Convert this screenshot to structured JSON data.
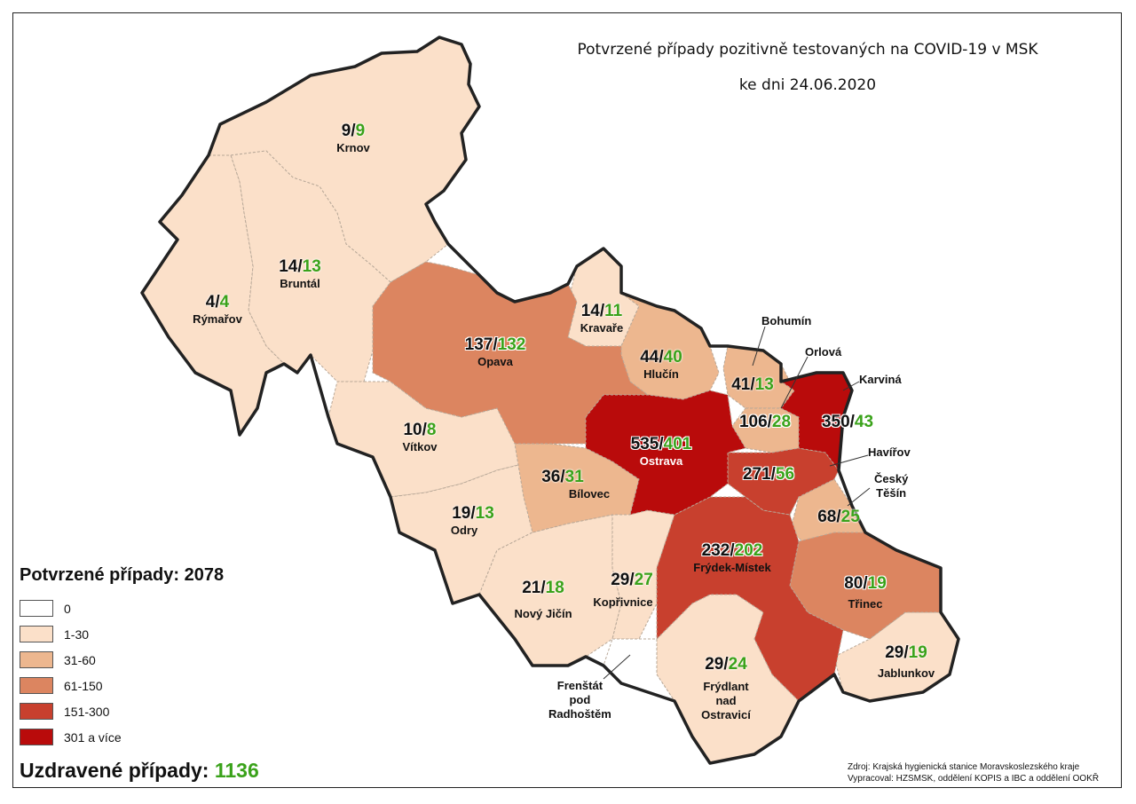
{
  "title_line1": "Potvrzené případy pozitivně testovaných na COVID-19 v MSK",
  "title_line2": "ke dni 24.06.2020",
  "colors": {
    "c0": "#ffffff",
    "c1": "#fbe0c9",
    "c2": "#edb78f",
    "c3": "#dc8560",
    "c4": "#c8402e",
    "c5": "#b90b0b",
    "recovered": "#3aa21a"
  },
  "districts": [
    {
      "name": "Krnov",
      "confirmed": "9",
      "recovered": "9"
    },
    {
      "name": "Bruntál",
      "confirmed": "14",
      "recovered": "13"
    },
    {
      "name": "Rýmařov",
      "confirmed": "4",
      "recovered": "4"
    },
    {
      "name": "Opava",
      "confirmed": "137",
      "recovered": "132"
    },
    {
      "name": "Kravaře",
      "confirmed": "14",
      "recovered": "11"
    },
    {
      "name": "Hlučín",
      "confirmed": "44",
      "recovered": "40"
    },
    {
      "name": "Vítkov",
      "confirmed": "10",
      "recovered": "8"
    },
    {
      "name": "Ostrava",
      "confirmed": "535",
      "recovered": "401"
    },
    {
      "name": "Bílovec",
      "confirmed": "36",
      "recovered": "31"
    },
    {
      "name": "Odry",
      "confirmed": "19",
      "recovered": "13"
    },
    {
      "name": "Nový Jičín",
      "confirmed": "21",
      "recovered": "18"
    },
    {
      "name": "Kopřivnice",
      "confirmed": "29",
      "recovered": "27"
    },
    {
      "name": "Frýdek-Místek",
      "confirmed": "232",
      "recovered": "202"
    },
    {
      "name": "Třinec",
      "confirmed": "80",
      "recovered": "19"
    },
    {
      "name": "Frýdlant nad Ostravicí",
      "confirmed": "29",
      "recovered": "24"
    },
    {
      "name": "Jablunkov",
      "confirmed": "29",
      "recovered": "19"
    },
    {
      "name": "Bohumín",
      "confirmed": "41",
      "recovered": "13"
    },
    {
      "name": "Orlová",
      "confirmed": "106",
      "recovered": "28"
    },
    {
      "name": "Karviná",
      "confirmed": "350",
      "recovered": "43"
    },
    {
      "name": "Havířov",
      "confirmed": "271",
      "recovered": "56"
    },
    {
      "name": "Český Těšín",
      "confirmed": "68",
      "recovered": "25"
    },
    {
      "name": "Frenštát pod Radhoštěm"
    }
  ],
  "labels": {
    "frydlant_l1": "Frýdlant",
    "frydlant_l2": "nad",
    "frydlant_l3": "Ostravicí",
    "frenstat_l1": "Frenštát",
    "frenstat_l2": "pod",
    "frenstat_l3": "Radhoštěm",
    "cesky_l1": "Český",
    "cesky_l2": "Těšín"
  },
  "legend": {
    "title": "Potvrzené případy: 2078",
    "items": [
      {
        "label": "0",
        "color": "#ffffff"
      },
      {
        "label": "1-30",
        "color": "#fbe0c9"
      },
      {
        "label": "31-60",
        "color": "#edb78f"
      },
      {
        "label": "61-150",
        "color": "#dc8560"
      },
      {
        "label": "151-300",
        "color": "#c8402e"
      },
      {
        "label": "301 a více",
        "color": "#b90b0b"
      }
    ]
  },
  "recovered_label": "Uzdravené případy:",
  "recovered_value": "1136",
  "source_line1": "Zdroj: Krajská hygienická stanice Moravskoslezského kraje",
  "source_line2": "Vypracoval: HZSMSK, oddělení KOPIS a IBC a oddělení OOKŘ"
}
